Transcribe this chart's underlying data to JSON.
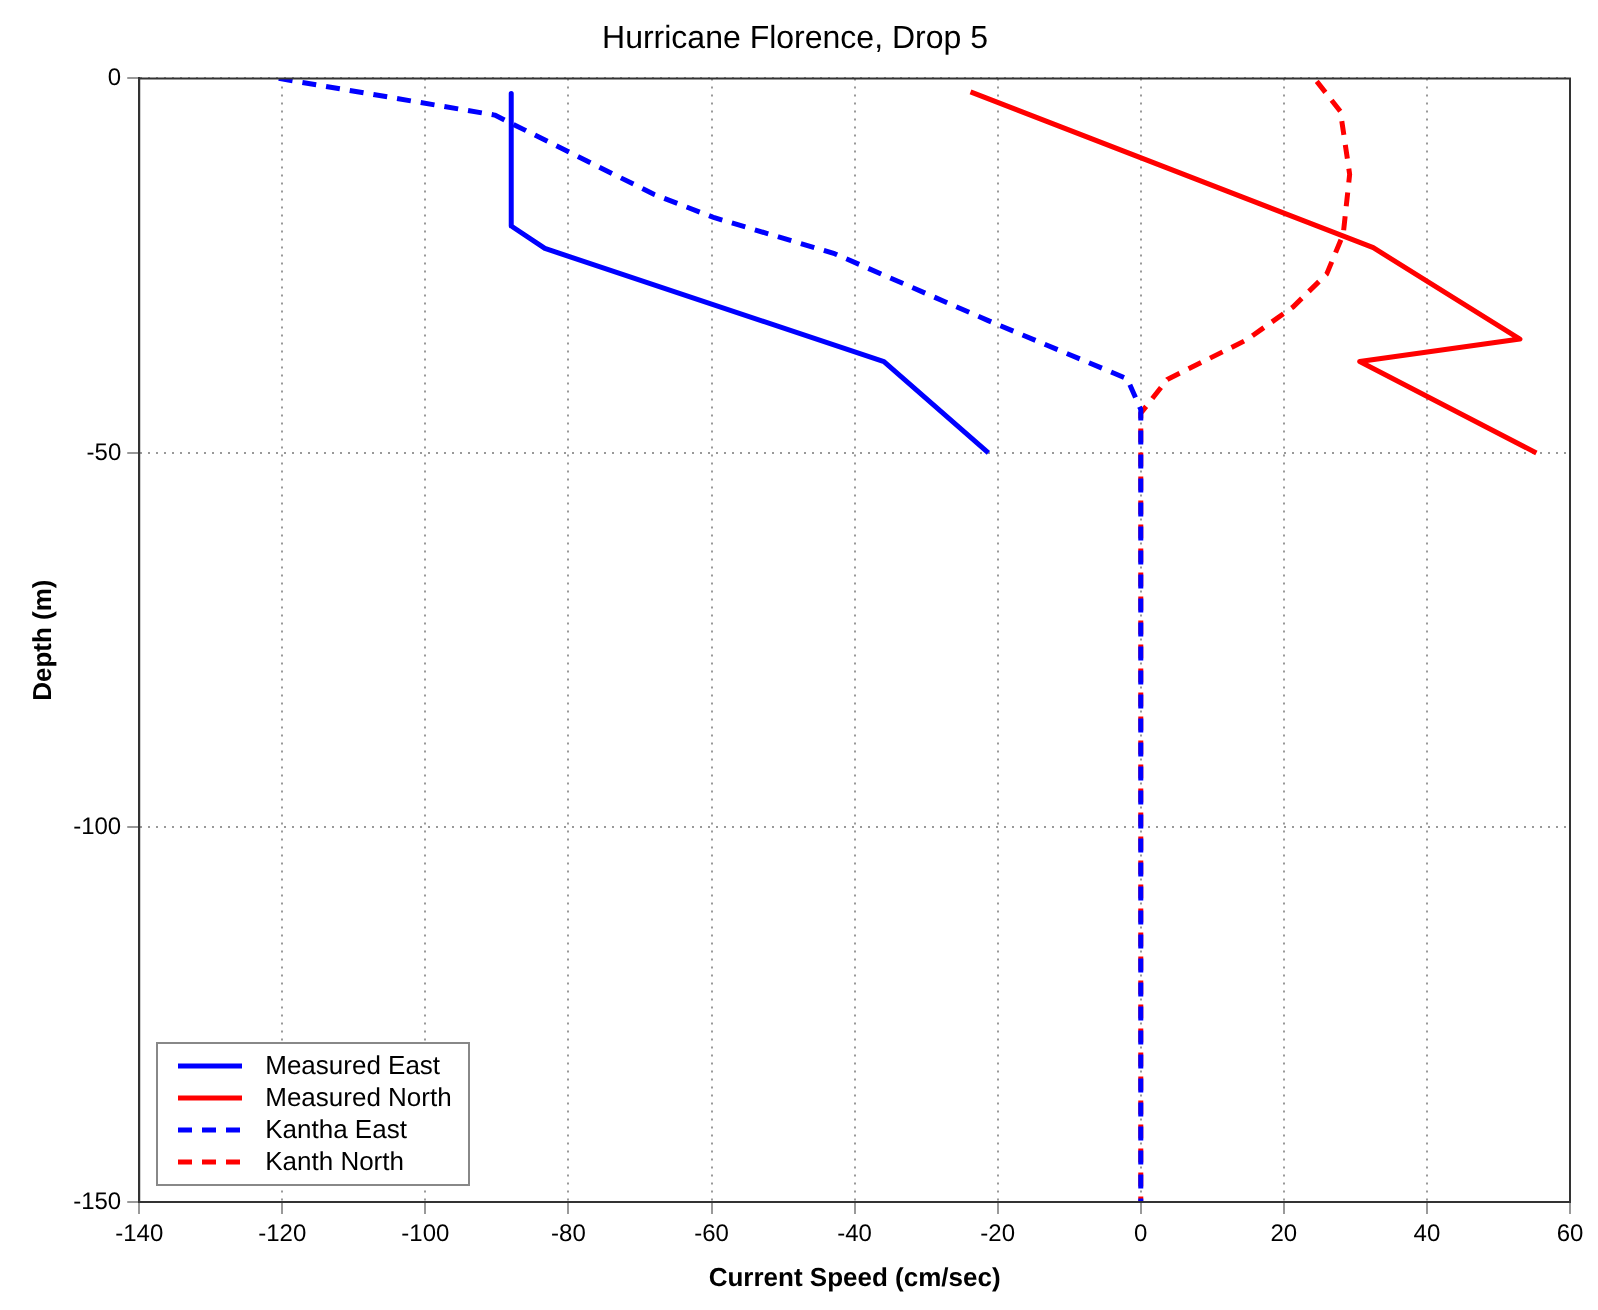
{
  "chart_data": {
    "type": "line",
    "title": "Hurricane Florence, Drop 5",
    "xlabel": "Current Speed (cm/sec)",
    "ylabel": "Depth (m)",
    "xlim": [
      -140,
      60
    ],
    "xticks": [
      -140,
      -120,
      -100,
      -80,
      -60,
      -40,
      -20,
      0,
      20,
      40,
      60
    ],
    "ylim": [
      -150,
      0
    ],
    "yticks": [
      -150,
      -100,
      -50,
      0
    ],
    "grid": true,
    "legend": "bottom left",
    "marker": "none",
    "series": [
      {
        "name": "Measured East",
        "color": "#0000ff",
        "line_style": "solid",
        "x": [
          -88,
          -88,
          -83.3,
          -35.9,
          -21.3
        ],
        "values": [
          -2,
          -19.7,
          -22.7,
          -37.8,
          -50
        ]
      },
      {
        "name": "Measured North",
        "color": "#ff0000",
        "line_style": "solid",
        "x": [
          -23.8,
          32.5,
          53,
          30.6,
          55.3
        ],
        "values": [
          -1.8,
          -22.6,
          -34.8,
          -37.8,
          -50
        ]
      },
      {
        "name": "Kantha East",
        "color": "#0000ff",
        "line_style": "dashed",
        "x": [
          -120.5,
          -90.3,
          -68,
          -59.6,
          -42.8,
          -21.4,
          -1.9,
          0,
          0
        ],
        "values": [
          0,
          -4.9,
          -15.5,
          -18.6,
          -23.4,
          -32.3,
          -40.1,
          -44.2,
          -150
        ]
      },
      {
        "name": "Kanth North",
        "color": "#ff0000",
        "line_style": "dashed",
        "x": [
          24.6,
          27.9,
          29.2,
          28.3,
          26,
          21.3,
          14.8,
          3.7,
          0,
          0
        ],
        "values": [
          -0.4,
          -4.4,
          -12.8,
          -20.8,
          -26.1,
          -30.5,
          -34.9,
          -40.2,
          -44.7,
          -150
        ]
      }
    ]
  }
}
